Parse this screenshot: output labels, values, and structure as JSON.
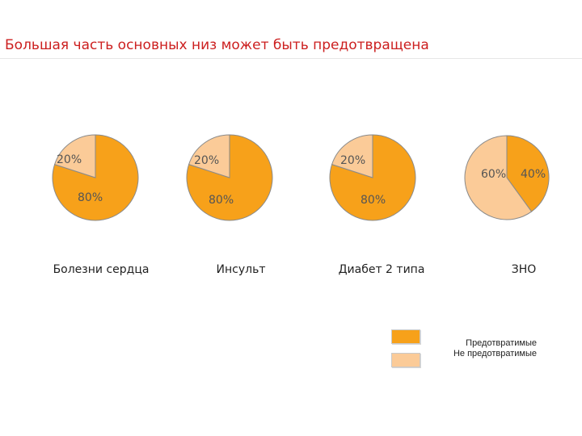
{
  "title": "Большая часть основных низ может быть предотвращена",
  "colors": {
    "preventable": "#f7a11a",
    "not_preventable": "#fbcb98",
    "title": "#cc1f1f"
  },
  "chart_data": [
    {
      "type": "pie",
      "label": "Болезни сердца",
      "slices": [
        {
          "category": "Предотвратимые",
          "value": 80,
          "text": "80%"
        },
        {
          "category": "Не предотвратимые",
          "value": 20,
          "text": "20%"
        }
      ]
    },
    {
      "type": "pie",
      "label": "Инсульт",
      "slices": [
        {
          "category": "Предотвратимые",
          "value": 80,
          "text": "80%"
        },
        {
          "category": "Не предотвратимые",
          "value": 20,
          "text": "20%"
        }
      ]
    },
    {
      "type": "pie",
      "label": "Диабет 2 типа",
      "slices": [
        {
          "category": "Предотвратимые",
          "value": 80,
          "text": "80%"
        },
        {
          "category": "Не предотвратимые",
          "value": 20,
          "text": "20%"
        }
      ]
    },
    {
      "type": "pie",
      "label": "ЗНО",
      "slices": [
        {
          "category": "Предотвратимые",
          "value": 40,
          "text": "40%"
        },
        {
          "category": "Не предотвратимые",
          "value": 60,
          "text": "60%"
        }
      ]
    }
  ],
  "legend": {
    "placement": "bottom-right",
    "items": [
      {
        "label": "Предотвратимые"
      },
      {
        "label": "Не предотвратимые"
      }
    ]
  }
}
